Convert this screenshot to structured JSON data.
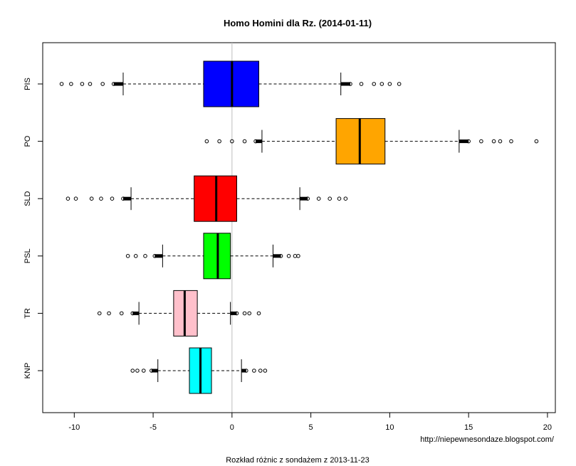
{
  "chart_data": {
    "type": "boxplot",
    "orientation": "horizontal",
    "title": "Homo Homini dla Rz. (2014-01-11)",
    "xlabel": "Rozkład różnic z sondażem z 2013-11-23",
    "source_note": "http://niepewnesondaze.blogspot.com/",
    "xlim": [
      -12,
      20.5
    ],
    "x_ticks": [
      -10,
      -5,
      0,
      5,
      10,
      15,
      20
    ],
    "reference_line_x": 0,
    "reference_line_color": "#bebebe",
    "categories": [
      "PIS",
      "PO",
      "SLD",
      "PSL",
      "TR",
      "KNP"
    ],
    "series": [
      {
        "name": "PIS",
        "color": "#0000ff",
        "whisker_low": -6.9,
        "q1": -1.8,
        "median": 0.0,
        "q3": 1.7,
        "whisker_high": 6.9,
        "outliers_low": [
          -7.5,
          -8.2,
          -9.0,
          -9.5,
          -10.2,
          -10.8
        ],
        "outliers_high": [
          7.5,
          8.2,
          9.0,
          9.5,
          10.0,
          10.6
        ]
      },
      {
        "name": "PO",
        "color": "#ffa500",
        "whisker_low": 1.9,
        "q1": 6.6,
        "median": 8.1,
        "q3": 9.7,
        "whisker_high": 14.4,
        "outliers_low": [
          1.5,
          0.8,
          0.0,
          -0.8,
          -1.6
        ],
        "outliers_high": [
          15.0,
          15.8,
          16.6,
          17.0,
          17.7,
          19.3
        ]
      },
      {
        "name": "SLD",
        "color": "#ff0000",
        "whisker_low": -6.4,
        "q1": -2.4,
        "median": -1.0,
        "q3": 0.3,
        "whisker_high": 4.3,
        "outliers_low": [
          -6.9,
          -7.6,
          -8.3,
          -8.9,
          -9.9,
          -10.4
        ],
        "outliers_high": [
          4.8,
          5.5,
          6.2,
          6.8,
          7.2
        ]
      },
      {
        "name": "PSL",
        "color": "#00ff00",
        "whisker_low": -4.4,
        "q1": -1.8,
        "median": -0.9,
        "q3": -0.1,
        "whisker_high": 2.6,
        "outliers_low": [
          -4.9,
          -5.5,
          -6.1,
          -6.6
        ],
        "outliers_high": [
          3.1,
          3.6,
          4.0,
          4.2
        ]
      },
      {
        "name": "TR",
        "color": "#ffc0cb",
        "whisker_low": -5.9,
        "q1": -3.7,
        "median": -3.0,
        "q3": -2.2,
        "whisker_high": -0.1,
        "outliers_low": [
          -6.3,
          -7.0,
          -7.8,
          -8.4
        ],
        "outliers_high": [
          0.3,
          0.8,
          1.1,
          1.7
        ]
      },
      {
        "name": "KNP",
        "color": "#00ffff",
        "whisker_low": -4.7,
        "q1": -2.7,
        "median": -2.0,
        "q3": -1.3,
        "whisker_high": 0.6,
        "outliers_low": [
          -5.1,
          -5.6,
          -6.0,
          -6.3
        ],
        "outliers_high": [
          0.9,
          1.4,
          1.8,
          2.1
        ]
      }
    ]
  }
}
